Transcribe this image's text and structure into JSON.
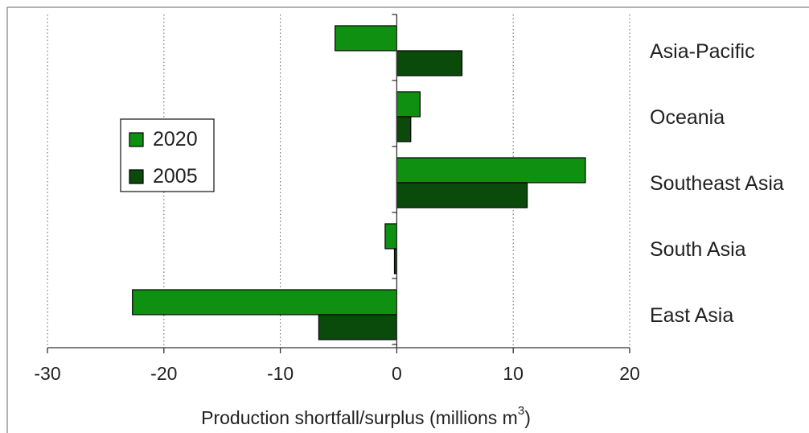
{
  "chart_data": {
    "type": "bar",
    "orientation": "horizontal",
    "categories": [
      "Asia-Pacific",
      "Oceania",
      "Southeast Asia",
      "South Asia",
      "East Asia"
    ],
    "series": [
      {
        "name": "2020",
        "color": "#109010",
        "values": [
          -5.3,
          2.0,
          16.2,
          -1.0,
          -22.7
        ]
      },
      {
        "name": "2005",
        "color": "#0a4a0a",
        "values": [
          5.6,
          1.2,
          11.2,
          -0.2,
          -6.7
        ]
      }
    ],
    "xlabel": "Production shortfall/surplus (millions m",
    "xlabel_sup": "3",
    "xlabel_suffix": ")",
    "xlim": [
      -30,
      20
    ],
    "xticks": [
      -30,
      -20,
      -10,
      0,
      10,
      20
    ],
    "xtick_labels": [
      "-30",
      "-20",
      "-10",
      "0",
      "10",
      "20"
    ],
    "grid": "vertical dotted",
    "legend_position": "left"
  }
}
